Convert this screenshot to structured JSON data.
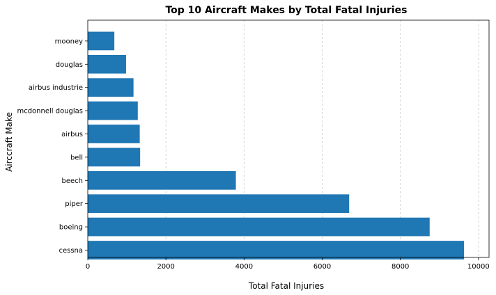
{
  "chart_data": {
    "type": "bar",
    "orientation": "horizontal",
    "title": "Top 10 Aircraft Makes by Total Fatal Injuries",
    "xlabel": "Total Fatal Injuries",
    "ylabel": "Airccraft Make",
    "categories": [
      "cessna",
      "boeing",
      "piper",
      "beech",
      "bell",
      "airbus",
      "mcdonnell douglas",
      "airbus industrie",
      "douglas",
      "mooney"
    ],
    "values": [
      9630,
      8750,
      6690,
      3790,
      1340,
      1330,
      1280,
      1170,
      980,
      680
    ],
    "xlim": [
      0,
      10270
    ],
    "xticks": [
      0,
      2000,
      4000,
      6000,
      8000,
      10000
    ],
    "xtick_labels": [
      "0",
      "2000",
      "4000",
      "6000",
      "8000",
      "10000"
    ],
    "grid": "vertical dashed",
    "bar_color": "#1f77b4",
    "grid_color": "#c8c8c8"
  }
}
